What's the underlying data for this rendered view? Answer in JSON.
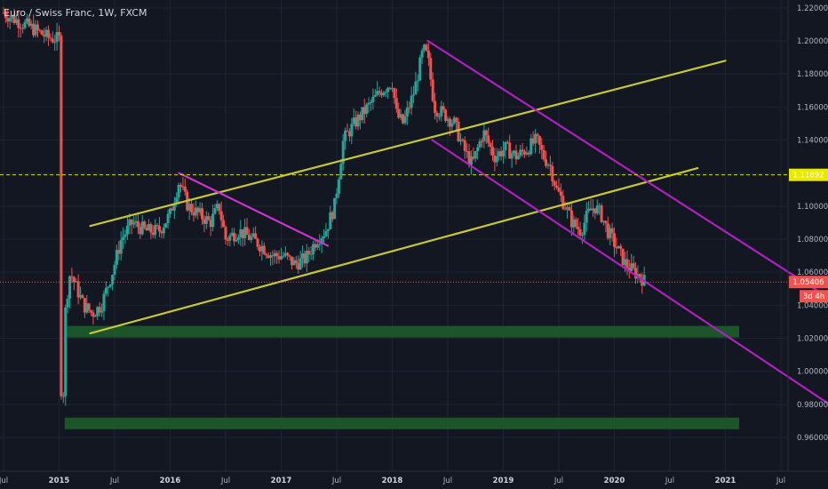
{
  "chart_data": {
    "type": "candlestick",
    "title": "Euro / Swiss Franc, 1W, FXCM",
    "y_axis": {
      "min": 0.95,
      "max": 1.225,
      "ticks": [
        "1.22000",
        "1.20000",
        "1.18000",
        "1.16000",
        "1.14000",
        "1.12000",
        "1.10000",
        "1.08000",
        "1.06000",
        "1.04000",
        "1.02000",
        "1.00000",
        "0.98000",
        "0.96000"
      ],
      "position": "right"
    },
    "x_axis": {
      "start": 2014.5,
      "end": 2021.5,
      "ticks": [
        {
          "t": 2014.5,
          "label": "Jul",
          "year": false
        },
        {
          "t": 2015.0,
          "label": "2015",
          "year": true
        },
        {
          "t": 2015.5,
          "label": "Jul",
          "year": false
        },
        {
          "t": 2016.0,
          "label": "2016",
          "year": true
        },
        {
          "t": 2016.5,
          "label": "Jul",
          "year": false
        },
        {
          "t": 2017.0,
          "label": "2017",
          "year": true
        },
        {
          "t": 2017.5,
          "label": "Jul",
          "year": false
        },
        {
          "t": 2018.0,
          "label": "2018",
          "year": true
        },
        {
          "t": 2018.5,
          "label": "Jul",
          "year": false
        },
        {
          "t": 2019.0,
          "label": "2019",
          "year": true
        },
        {
          "t": 2019.5,
          "label": "Jul",
          "year": false
        },
        {
          "t": 2020.0,
          "label": "2020",
          "year": true
        },
        {
          "t": 2020.5,
          "label": "Jul",
          "year": false
        },
        {
          "t": 2021.0,
          "label": "2021",
          "year": true
        },
        {
          "t": 2021.5,
          "label": "Jul",
          "year": false
        }
      ]
    },
    "price_path": [
      [
        2014.5,
        1.217
      ],
      [
        2014.6,
        1.213
      ],
      [
        2014.75,
        1.208
      ],
      [
        2014.9,
        1.202
      ],
      [
        2015.0,
        1.201
      ],
      [
        2015.02,
        0.98
      ],
      [
        2015.06,
        1.04
      ],
      [
        2015.1,
        1.06
      ],
      [
        2015.16,
        1.05
      ],
      [
        2015.22,
        1.04
      ],
      [
        2015.3,
        1.035
      ],
      [
        2015.38,
        1.04
      ],
      [
        2015.48,
        1.06
      ],
      [
        2015.56,
        1.08
      ],
      [
        2015.66,
        1.09
      ],
      [
        2015.78,
        1.085
      ],
      [
        2015.9,
        1.085
      ],
      [
        2016.0,
        1.095
      ],
      [
        2016.08,
        1.115
      ],
      [
        2016.16,
        1.1
      ],
      [
        2016.26,
        1.095
      ],
      [
        2016.36,
        1.09
      ],
      [
        2016.44,
        1.1
      ],
      [
        2016.5,
        1.08
      ],
      [
        2016.62,
        1.085
      ],
      [
        2016.74,
        1.08
      ],
      [
        2016.84,
        1.075
      ],
      [
        2016.92,
        1.07
      ],
      [
        2017.02,
        1.07
      ],
      [
        2017.12,
        1.065
      ],
      [
        2017.22,
        1.068
      ],
      [
        2017.32,
        1.08
      ],
      [
        2017.4,
        1.085
      ],
      [
        2017.48,
        1.1
      ],
      [
        2017.56,
        1.14
      ],
      [
        2017.66,
        1.15
      ],
      [
        2017.78,
        1.16
      ],
      [
        2017.9,
        1.17
      ],
      [
        2018.0,
        1.175
      ],
      [
        2018.04,
        1.155
      ],
      [
        2018.1,
        1.15
      ],
      [
        2018.2,
        1.17
      ],
      [
        2018.28,
        1.195
      ],
      [
        2018.32,
        1.19
      ],
      [
        2018.38,
        1.16
      ],
      [
        2018.48,
        1.155
      ],
      [
        2018.56,
        1.15
      ],
      [
        2018.64,
        1.135
      ],
      [
        2018.72,
        1.125
      ],
      [
        2018.82,
        1.145
      ],
      [
        2018.92,
        1.13
      ],
      [
        2019.02,
        1.135
      ],
      [
        2019.12,
        1.13
      ],
      [
        2019.22,
        1.135
      ],
      [
        2019.3,
        1.14
      ],
      [
        2019.36,
        1.13
      ],
      [
        2019.42,
        1.125
      ],
      [
        2019.48,
        1.11
      ],
      [
        2019.56,
        1.1
      ],
      [
        2019.62,
        1.09
      ],
      [
        2019.7,
        1.085
      ],
      [
        2019.76,
        1.095
      ],
      [
        2019.82,
        1.1
      ],
      [
        2019.88,
        1.095
      ],
      [
        2019.94,
        1.085
      ],
      [
        2020.02,
        1.075
      ],
      [
        2020.1,
        1.065
      ],
      [
        2020.18,
        1.06
      ],
      [
        2020.24,
        1.057
      ],
      [
        2020.28,
        1.054
      ]
    ],
    "trendlines": [
      {
        "color": "#c8c830",
        "from": [
          2015.28,
          1.088
        ],
        "to": [
          2021.0,
          1.188
        ]
      },
      {
        "color": "#c8c830",
        "from": [
          2015.28,
          1.023
        ],
        "to": [
          2020.75,
          1.123
        ]
      },
      {
        "color": "#d032d0",
        "from": [
          2016.08,
          1.12
        ],
        "to": [
          2017.42,
          1.076
        ]
      },
      {
        "color": "#b020c0",
        "from": [
          2018.32,
          1.2
        ],
        "to": [
          2022.15,
          1.035
        ]
      },
      {
        "color": "#b020c0",
        "from": [
          2018.36,
          1.14
        ],
        "to": [
          2022.05,
          0.975
        ]
      }
    ],
    "zones": [
      {
        "color": "#1e5c2a",
        "from_t": 2015.05,
        "to_t": 2022.2,
        "y_high": 1.0275,
        "y_low": 1.0205
      },
      {
        "color": "#1e5c2a",
        "from_t": 2015.05,
        "to_t": 2022.2,
        "y_high": 0.972,
        "y_low": 0.965
      }
    ],
    "levels": [
      {
        "value": 1.11892,
        "label": "1.11892",
        "style": "dashed",
        "color": "#e0e000",
        "badge_color": "#e8e800",
        "badge_text_color": "#000000"
      },
      {
        "value": 1.05406,
        "label": "1.05406",
        "style": "dotted",
        "color": "#ef5350",
        "badge_color": "#ef5350",
        "badge_text_color": "#ffffff"
      }
    ],
    "countdown": "3d 4h",
    "colors": {
      "up": "#26a69a",
      "down": "#ef5350",
      "background": "#131722",
      "grid": "#1f2433"
    },
    "grid": true
  }
}
